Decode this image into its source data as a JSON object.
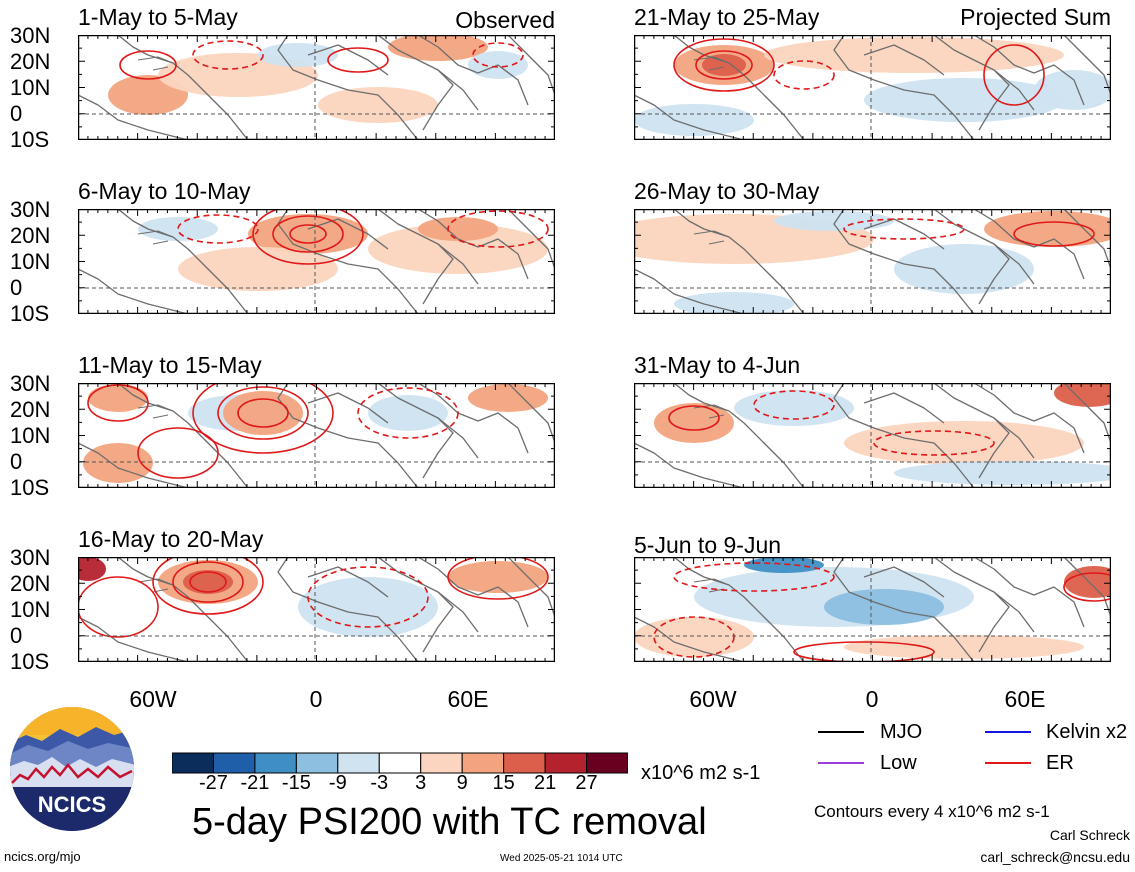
{
  "columns": {
    "left_label": "Observed",
    "right_label": "Projected Sum"
  },
  "panels": [
    {
      "title": "1-May to 5-May",
      "column": "left"
    },
    {
      "title": "6-May to 10-May",
      "column": "left"
    },
    {
      "title": "11-May to 15-May",
      "column": "left"
    },
    {
      "title": "16-May to 20-May",
      "column": "left"
    },
    {
      "title": "21-May to 25-May",
      "column": "right"
    },
    {
      "title": "26-May to 30-May",
      "column": "right"
    },
    {
      "title": "31-May to 4-Jun",
      "column": "right"
    },
    {
      "title": "5-Jun to 9-Jun",
      "column": "right"
    }
  ],
  "axes": {
    "lat_ticks": [
      "30N",
      "20N",
      "10N",
      "0",
      "10S"
    ],
    "lon_ticks": [
      "60W",
      "0",
      "60E"
    ]
  },
  "colorbar": {
    "labels": [
      "-27",
      "-21",
      "-15",
      "-9",
      "-3",
      "3",
      "9",
      "15",
      "21",
      "27"
    ],
    "colors": [
      "#0b2d5c",
      "#1f5ea8",
      "#3f8fc5",
      "#8dbfe0",
      "#cfe3f1",
      "#ffffff",
      "#fbd5bf",
      "#f3a47f",
      "#dc5f4b",
      "#b4222e",
      "#6a0020"
    ],
    "units": "x10^6 m2 s-1"
  },
  "legend": {
    "items": [
      {
        "label": "MJO",
        "color": "#000000"
      },
      {
        "label": "Kelvin x2",
        "color": "#1515e0"
      },
      {
        "label": "Low",
        "color": "#9b3fd8"
      },
      {
        "label": "ER",
        "color": "#e01818"
      }
    ],
    "contour_note": "Contours every 4 x10^6 m2 s-1"
  },
  "main_title": "5-day PSI200 with TC removal",
  "logo_text": "NCICS",
  "footer": {
    "url": "ncics.org/mjo",
    "timestamp": "Wed 2025-05-21 1014 UTC",
    "author": "Carl Schreck",
    "email": "carl_schreck@ncsu.edu"
  }
}
